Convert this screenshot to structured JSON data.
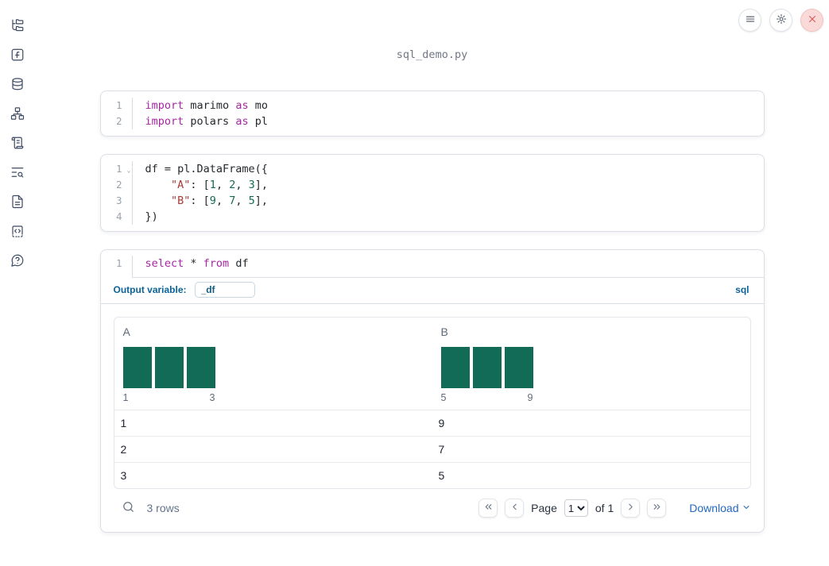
{
  "header": {
    "title": "sql_demo.py"
  },
  "window_controls": {
    "buttons": [
      "menu",
      "settings",
      "close"
    ]
  },
  "sidebar": {
    "items": [
      {
        "name": "file-explorer",
        "icon": "folder-tree"
      },
      {
        "name": "variables",
        "icon": "square-function"
      },
      {
        "name": "datasources",
        "icon": "database"
      },
      {
        "name": "dependencies",
        "icon": "network"
      },
      {
        "name": "logs",
        "icon": "scroll-text"
      },
      {
        "name": "outline-search",
        "icon": "text-search"
      },
      {
        "name": "documentation",
        "icon": "file-text"
      },
      {
        "name": "snippets",
        "icon": "code-square"
      },
      {
        "name": "help",
        "icon": "message-question"
      }
    ]
  },
  "cells": [
    {
      "kind": "python",
      "lines": [
        {
          "num": "1",
          "tokens": [
            {
              "text": "import",
              "type": "kw"
            },
            {
              "text": " marimo ",
              "type": "plain"
            },
            {
              "text": "as",
              "type": "kw"
            },
            {
              "text": " mo",
              "type": "plain"
            }
          ]
        },
        {
          "num": "2",
          "tokens": [
            {
              "text": "import",
              "type": "kw"
            },
            {
              "text": " polars ",
              "type": "plain"
            },
            {
              "text": "as",
              "type": "kw"
            },
            {
              "text": " pl",
              "type": "plain"
            }
          ]
        }
      ]
    },
    {
      "kind": "python",
      "lines": [
        {
          "num": "1",
          "fold": true,
          "tokens": [
            {
              "text": "df = pl.DataFrame({",
              "type": "plain"
            }
          ]
        },
        {
          "num": "2",
          "tokens": [
            {
              "text": "    ",
              "type": "plain"
            },
            {
              "text": "\"A\"",
              "type": "str"
            },
            {
              "text": ": [",
              "type": "plain"
            },
            {
              "text": "1",
              "type": "num"
            },
            {
              "text": ", ",
              "type": "plain"
            },
            {
              "text": "2",
              "type": "num"
            },
            {
              "text": ", ",
              "type": "plain"
            },
            {
              "text": "3",
              "type": "num"
            },
            {
              "text": "],",
              "type": "plain"
            }
          ]
        },
        {
          "num": "3",
          "tokens": [
            {
              "text": "    ",
              "type": "plain"
            },
            {
              "text": "\"B\"",
              "type": "str"
            },
            {
              "text": ": [",
              "type": "plain"
            },
            {
              "text": "9",
              "type": "num"
            },
            {
              "text": ", ",
              "type": "plain"
            },
            {
              "text": "7",
              "type": "num"
            },
            {
              "text": ", ",
              "type": "plain"
            },
            {
              "text": "5",
              "type": "num"
            },
            {
              "text": "],",
              "type": "plain"
            }
          ]
        },
        {
          "num": "4",
          "tokens": [
            {
              "text": "})",
              "type": "plain"
            }
          ]
        }
      ]
    },
    {
      "kind": "sql",
      "lines": [
        {
          "num": "1",
          "tokens": [
            {
              "text": "select",
              "type": "kw"
            },
            {
              "text": " * ",
              "type": "plain"
            },
            {
              "text": "from",
              "type": "kw"
            },
            {
              "text": " df",
              "type": "plain"
            }
          ]
        }
      ],
      "output_variable_label": "Output variable:",
      "output_variable_value": "_df",
      "language_badge": "sql"
    }
  ],
  "table": {
    "columns": [
      {
        "name": "A",
        "hist": {
          "bars": [
            1,
            1,
            1
          ],
          "min_label": "1",
          "max_label": "3"
        }
      },
      {
        "name": "B",
        "hist": {
          "bars": [
            1,
            1,
            1
          ],
          "min_label": "5",
          "max_label": "9"
        }
      }
    ],
    "rows": [
      [
        "1",
        "9"
      ],
      [
        "2",
        "7"
      ],
      [
        "3",
        "5"
      ]
    ],
    "footer": {
      "row_count": "3 rows",
      "page_label": "Page",
      "page_value": "1",
      "of_label": "of 1",
      "download_label": "Download"
    }
  },
  "colors": {
    "keyword": "#a626a4",
    "string": "#a73a38",
    "number": "#116c53",
    "histogram_bar": "#116b57",
    "accent_blue": "#0b6399",
    "link_blue": "#2468c4"
  }
}
